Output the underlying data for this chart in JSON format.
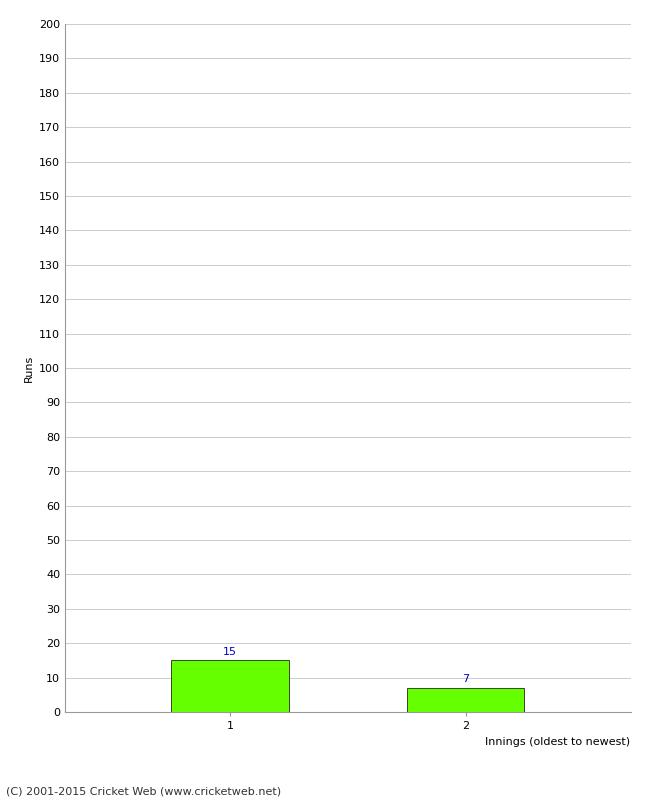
{
  "xlabel": "Innings (oldest to newest)",
  "ylabel": "Runs",
  "categories": [
    1,
    2
  ],
  "values": [
    15,
    7
  ],
  "bar_color": "#66ff00",
  "bar_edge_color": "#000000",
  "label_color": "#0000cc",
  "ylim": [
    0,
    200
  ],
  "yticks": [
    0,
    10,
    20,
    30,
    40,
    50,
    60,
    70,
    80,
    90,
    100,
    110,
    120,
    130,
    140,
    150,
    160,
    170,
    180,
    190,
    200
  ],
  "xticks": [
    1,
    2
  ],
  "background_color": "#ffffff",
  "grid_color": "#cccccc",
  "footer_text": "(C) 2001-2015 Cricket Web (www.cricketweb.net)",
  "bar_width": 0.5,
  "label_fontsize": 8,
  "axis_fontsize": 8,
  "ylabel_fontsize": 8,
  "footer_fontsize": 8
}
